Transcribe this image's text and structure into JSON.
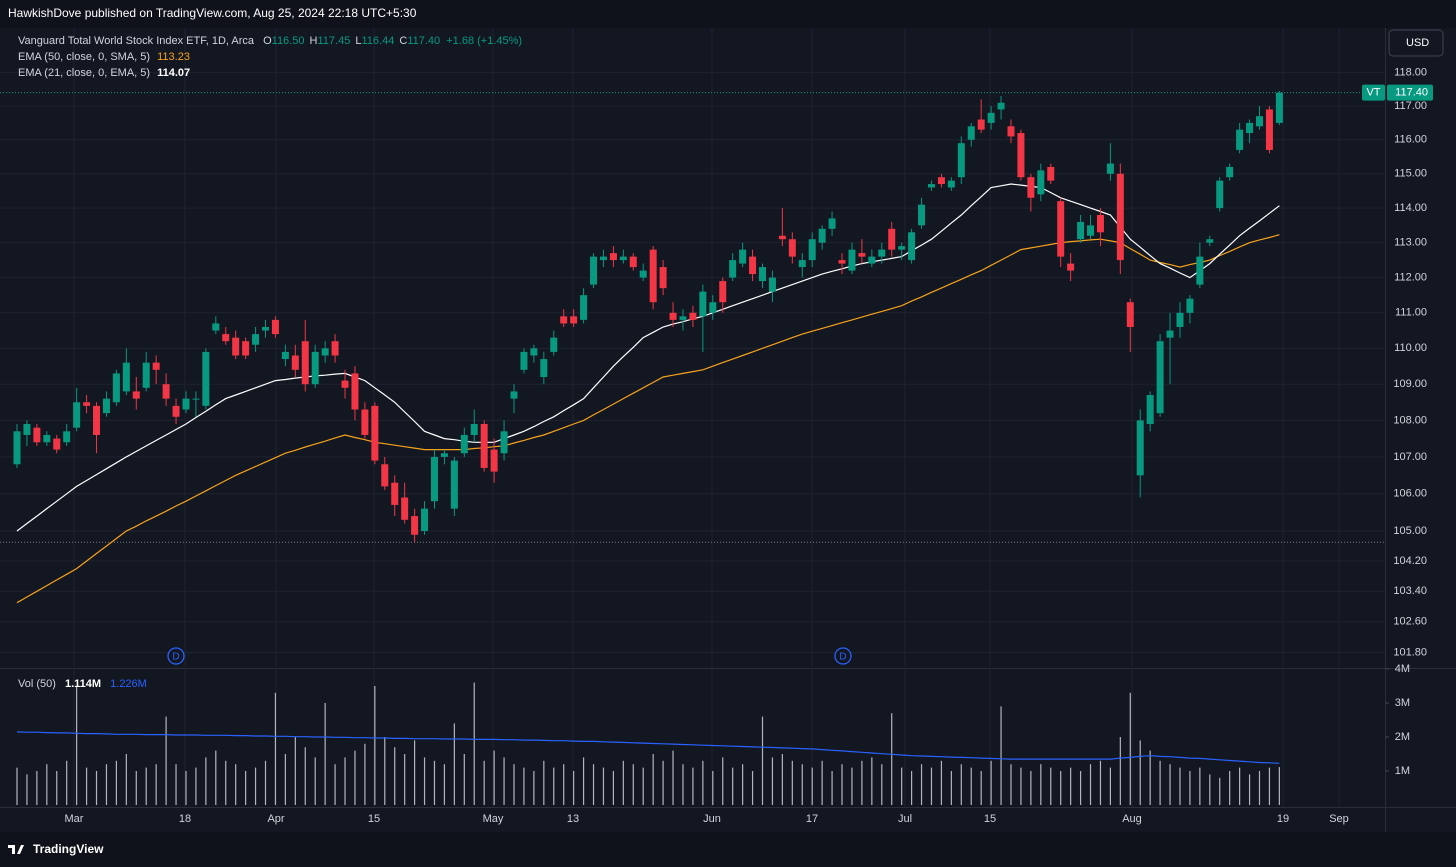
{
  "header": "HawkishDove published on TradingView.com, Aug 25, 2024 22:18 UTC+5:30",
  "footer": "TradingView",
  "currency_button": "USD",
  "legend": {
    "symbol_line": "Vanguard Total World Stock Index ETF, 1D, Arca",
    "ohlc": [
      {
        "key": "O",
        "value": "116.50"
      },
      {
        "key": "H",
        "value": "117.45"
      },
      {
        "key": "L",
        "value": "116.44"
      },
      {
        "key": "C",
        "value": "117.40"
      }
    ],
    "change": "+1.68 (+1.45%)"
  },
  "last_price": {
    "symbol": "VT",
    "label": "117.40"
  },
  "dividends": [
    "D",
    "D"
  ],
  "chart_data": {
    "type": "candlestick",
    "log_scale": true,
    "grid": true,
    "up_color": "#089981",
    "down_color": "#f23645",
    "ylim": [
      101.4,
      119.35
    ],
    "yticks": [
      {
        "value": 118,
        "label": "118.00"
      },
      {
        "value": 117,
        "label": "117.00"
      },
      {
        "value": 116,
        "label": "116.00"
      },
      {
        "value": 115,
        "label": "115.00"
      },
      {
        "value": 114,
        "label": "114.00"
      },
      {
        "value": 113,
        "label": "113.00"
      },
      {
        "value": 112,
        "label": "112.00"
      },
      {
        "value": 111,
        "label": "111.00"
      },
      {
        "value": 110,
        "label": "110.00"
      },
      {
        "value": 109,
        "label": "109.00"
      },
      {
        "value": 108,
        "label": "108.00"
      },
      {
        "value": 107,
        "label": "107.00"
      },
      {
        "value": 106,
        "label": "106.00"
      },
      {
        "value": 105,
        "label": "105.00"
      },
      {
        "value": 104.2,
        "label": "104.20"
      },
      {
        "value": 103.4,
        "label": "103.40"
      },
      {
        "value": 102.6,
        "label": "102.60"
      },
      {
        "value": 101.8,
        "label": "101.80"
      }
    ],
    "xtick_labels": [
      "Mar",
      "18",
      "Apr",
      "15",
      "May",
      "13",
      "Jun",
      "17",
      "Jul",
      "15",
      "Aug",
      "19",
      "Sep"
    ],
    "open": [
      106.8,
      107.6,
      107.8,
      107.4,
      107.5,
      107.4,
      107.8,
      108.5,
      108.4,
      108.2,
      108.5,
      108.8,
      108.8,
      108.9,
      109.6,
      109.0,
      108.4,
      108.3,
      108.6,
      108.4,
      110.5,
      110.4,
      110.3,
      110.2,
      110.1,
      110.5,
      110.8,
      109.7,
      109.8,
      110.2,
      109.0,
      109.8,
      110.2,
      109.1,
      109.3,
      108.3,
      108.4,
      106.8,
      106.3,
      105.9,
      105.4,
      105.0,
      105.8,
      107.0,
      105.6,
      107.1,
      107.6,
      107.9,
      107.2,
      107.1,
      108.6,
      109.4,
      109.8,
      109.2,
      109.9,
      110.9,
      110.9,
      110.8,
      111.8,
      112.5,
      112.7,
      112.5,
      112.6,
      112.0,
      112.8,
      112.3,
      111.0,
      110.8,
      111.0,
      110.9,
      111.0,
      111.9,
      112.0,
      112.4,
      112.6,
      111.9,
      111.6,
      113.2,
      113.1,
      112.3,
      112.5,
      113.0,
      113.4,
      112.5,
      112.2,
      112.7,
      112.4,
      112.6,
      113.4,
      112.8,
      112.5,
      113.5,
      114.6,
      114.9,
      114.6,
      114.9,
      116.0,
      116.6,
      116.5,
      116.9,
      116.4,
      116.2,
      114.9,
      114.4,
      115.2,
      114.2,
      112.4,
      113.1,
      113.2,
      113.8,
      115.0,
      115.0,
      111.3,
      106.5,
      107.9,
      108.2,
      110.3,
      110.6,
      111.0,
      111.8,
      113.0,
      114.0,
      114.9,
      115.7,
      116.2,
      116.4,
      116.9,
      116.5
    ],
    "high": [
      107.9,
      108.0,
      107.9,
      107.7,
      107.6,
      107.9,
      108.9,
      108.7,
      108.5,
      108.8,
      109.4,
      110.0,
      109.2,
      109.9,
      109.8,
      109.3,
      108.6,
      108.8,
      108.8,
      110.0,
      110.9,
      110.6,
      110.5,
      110.3,
      110.6,
      110.8,
      110.9,
      110.1,
      110.1,
      110.8,
      110.1,
      110.2,
      110.4,
      109.4,
      109.5,
      108.5,
      108.5,
      107.0,
      106.5,
      106.3,
      105.6,
      105.8,
      107.2,
      107.2,
      107.0,
      107.8,
      108.3,
      108.0,
      107.5,
      108.0,
      109.0,
      110.0,
      110.1,
      109.9,
      110.5,
      111.1,
      111.1,
      111.7,
      112.7,
      112.8,
      112.9,
      112.8,
      112.7,
      112.4,
      112.9,
      112.5,
      111.3,
      111.1,
      111.2,
      111.8,
      111.5,
      112.0,
      112.7,
      113.0,
      112.8,
      112.4,
      112.2,
      114.0,
      113.3,
      112.7,
      113.3,
      113.5,
      113.9,
      112.7,
      113.0,
      113.1,
      112.8,
      113.0,
      113.6,
      113.0,
      113.4,
      114.3,
      114.8,
      115.0,
      114.9,
      116.1,
      116.5,
      117.2,
      117.0,
      117.3,
      116.6,
      116.3,
      115.0,
      115.3,
      115.3,
      114.3,
      112.7,
      113.8,
      113.8,
      114.0,
      115.9,
      115.3,
      111.4,
      108.3,
      108.8,
      110.4,
      111.0,
      111.3,
      111.5,
      113.0,
      113.2,
      114.9,
      115.3,
      116.5,
      116.6,
      117.0,
      117.0,
      117.45
    ],
    "low": [
      106.7,
      107.3,
      107.3,
      107.3,
      107.1,
      107.3,
      107.7,
      108.2,
      107.1,
      108.1,
      108.4,
      108.7,
      108.3,
      108.8,
      109.0,
      108.4,
      107.9,
      108.2,
      108.1,
      108.3,
      110.4,
      110.1,
      109.7,
      109.7,
      109.9,
      110.3,
      110.3,
      109.5,
      109.2,
      108.8,
      108.9,
      109.6,
      109.6,
      108.6,
      108.0,
      107.5,
      106.8,
      106.1,
      105.4,
      105.2,
      104.7,
      104.9,
      105.6,
      106.8,
      105.4,
      107.0,
      107.4,
      106.6,
      106.3,
      106.9,
      108.2,
      109.3,
      109.6,
      109.0,
      109.8,
      110.6,
      110.6,
      110.7,
      111.7,
      112.3,
      112.3,
      112.4,
      112.2,
      111.9,
      111.1,
      111.5,
      110.6,
      110.5,
      110.6,
      109.9,
      110.8,
      111.0,
      111.9,
      112.3,
      111.9,
      111.7,
      111.3,
      112.9,
      112.4,
      112.0,
      112.3,
      112.8,
      113.2,
      112.1,
      112.1,
      112.4,
      112.3,
      112.4,
      112.6,
      112.5,
      112.4,
      113.4,
      114.5,
      114.6,
      114.5,
      114.7,
      115.8,
      116.2,
      116.3,
      116.6,
      115.9,
      114.8,
      113.9,
      114.2,
      114.7,
      112.3,
      111.9,
      113.0,
      113.1,
      112.9,
      114.8,
      112.1,
      109.9,
      105.9,
      107.7,
      108.1,
      109.0,
      110.3,
      110.7,
      111.7,
      112.9,
      113.9,
      114.8,
      115.6,
      115.9,
      116.3,
      115.6,
      116.44
    ],
    "close": [
      107.7,
      107.9,
      107.4,
      107.6,
      107.2,
      107.7,
      108.5,
      108.4,
      107.6,
      108.6,
      109.3,
      109.6,
      108.6,
      109.6,
      109.4,
      108.6,
      108.1,
      108.6,
      108.6,
      109.9,
      110.7,
      110.2,
      109.8,
      109.8,
      110.4,
      110.6,
      110.4,
      109.9,
      109.4,
      109.0,
      109.9,
      110.0,
      109.8,
      108.9,
      108.3,
      107.6,
      106.9,
      106.2,
      105.7,
      105.3,
      104.9,
      105.6,
      107.0,
      107.1,
      106.9,
      107.6,
      107.9,
      106.7,
      106.6,
      107.7,
      108.8,
      109.9,
      110.0,
      109.7,
      110.3,
      110.7,
      110.7,
      111.5,
      112.6,
      112.6,
      112.5,
      112.6,
      112.3,
      112.2,
      111.3,
      111.7,
      110.8,
      110.9,
      110.8,
      111.6,
      111.3,
      111.3,
      112.5,
      112.8,
      112.1,
      112.3,
      112.0,
      113.1,
      112.6,
      112.5,
      113.1,
      113.4,
      113.7,
      112.4,
      112.8,
      112.6,
      112.6,
      112.8,
      112.8,
      112.9,
      113.3,
      114.1,
      114.7,
      114.7,
      114.8,
      115.9,
      116.4,
      116.3,
      116.8,
      117.1,
      116.1,
      114.9,
      114.3,
      115.1,
      114.8,
      112.6,
      112.2,
      113.6,
      113.5,
      113.3,
      115.3,
      112.5,
      110.6,
      108.0,
      108.7,
      110.2,
      110.5,
      111.0,
      111.4,
      112.6,
      113.1,
      114.8,
      115.2,
      116.3,
      116.5,
      116.7,
      115.7,
      117.4
    ],
    "series": [
      {
        "name": "EMA (50, close, 0, SMA, 5)",
        "color": "#f7a21b",
        "value_label": "113.23",
        "values": [
          103.1,
          103.25,
          103.4,
          103.55,
          103.7,
          103.85,
          104.0,
          104.2,
          104.4,
          104.6,
          104.8,
          105.0,
          105.13,
          105.27,
          105.4,
          105.53,
          105.67,
          105.8,
          105.94,
          106.08,
          106.22,
          106.36,
          106.5,
          106.62,
          106.74,
          106.86,
          106.98,
          107.1,
          107.18,
          107.27,
          107.35,
          107.43,
          107.52,
          107.6,
          107.53,
          107.47,
          107.4,
          107.36,
          107.32,
          107.28,
          107.24,
          107.2,
          107.2,
          107.2,
          107.2,
          107.2,
          107.23,
          107.25,
          107.28,
          107.3,
          107.38,
          107.45,
          107.53,
          107.6,
          107.7,
          107.8,
          107.9,
          108.0,
          108.15,
          108.3,
          108.45,
          108.6,
          108.75,
          108.9,
          109.05,
          109.2,
          109.25,
          109.3,
          109.35,
          109.4,
          109.5,
          109.6,
          109.7,
          109.8,
          109.9,
          110.0,
          110.1,
          110.2,
          110.3,
          110.4,
          110.48,
          110.56,
          110.64,
          110.72,
          110.8,
          110.88,
          110.96,
          111.04,
          111.12,
          111.2,
          111.33,
          111.45,
          111.58,
          111.7,
          111.83,
          111.95,
          112.08,
          112.2,
          112.35,
          112.5,
          112.65,
          112.8,
          112.85,
          112.9,
          112.95,
          113.0,
          113.03,
          113.05,
          113.08,
          113.1,
          113.05,
          113.0,
          112.83,
          112.67,
          112.5,
          112.43,
          112.37,
          112.3,
          112.37,
          112.43,
          112.5,
          112.63,
          112.75,
          112.88,
          113.0,
          113.08,
          113.15,
          113.23
        ]
      },
      {
        "name": "EMA (21, close, 0, EMA, 5)",
        "color": "#ffffff",
        "value_label": "114.07",
        "values": [
          105.0,
          105.2,
          105.4,
          105.6,
          105.8,
          106.0,
          106.2,
          106.36,
          106.52,
          106.68,
          106.84,
          107.0,
          107.15,
          107.3,
          107.45,
          107.6,
          107.75,
          107.9,
          108.08,
          108.25,
          108.43,
          108.6,
          108.7,
          108.8,
          108.9,
          109.0,
          109.1,
          109.13,
          109.17,
          109.2,
          109.23,
          109.25,
          109.28,
          109.3,
          109.2,
          109.1,
          108.9,
          108.7,
          108.5,
          108.23,
          107.97,
          107.7,
          107.6,
          107.5,
          107.47,
          107.43,
          107.4,
          107.4,
          107.4,
          107.5,
          107.6,
          107.7,
          107.83,
          107.97,
          108.1,
          108.27,
          108.43,
          108.6,
          108.9,
          109.2,
          109.5,
          109.77,
          110.03,
          110.3,
          110.45,
          110.6,
          110.68,
          110.75,
          110.83,
          110.9,
          111.0,
          111.1,
          111.2,
          111.3,
          111.4,
          111.5,
          111.6,
          111.7,
          111.8,
          111.9,
          112.0,
          112.1,
          112.18,
          112.25,
          112.33,
          112.4,
          112.45,
          112.5,
          112.55,
          112.6,
          112.77,
          112.93,
          113.1,
          113.33,
          113.57,
          113.8,
          114.07,
          114.33,
          114.6,
          114.65,
          114.7,
          114.67,
          114.63,
          114.6,
          114.45,
          114.3,
          114.2,
          114.1,
          114.0,
          113.9,
          113.8,
          113.45,
          113.1,
          112.87,
          112.63,
          112.4,
          112.27,
          112.13,
          112.0,
          112.2,
          112.4,
          112.67,
          112.93,
          113.2,
          113.42,
          113.63,
          113.85,
          114.07
        ]
      }
    ],
    "volume": {
      "name": "Vol (50)",
      "color": "#b2b5be",
      "value_label": "1.114M",
      "ylim": [
        0,
        4
      ],
      "yticks": [
        {
          "value": 1,
          "label": "1M"
        },
        {
          "value": 2,
          "label": "2M"
        },
        {
          "value": 3,
          "label": "3M"
        },
        {
          "value": 4,
          "label": "4M"
        }
      ],
      "values": [
        1.1,
        0.9,
        1.0,
        1.2,
        1.0,
        1.3,
        3.5,
        1.1,
        1.0,
        1.2,
        1.3,
        1.5,
        1.0,
        1.1,
        1.2,
        2.6,
        1.2,
        1.0,
        1.1,
        1.4,
        1.6,
        1.3,
        1.2,
        1.0,
        1.1,
        1.3,
        3.3,
        1.5,
        2.0,
        1.7,
        1.4,
        3.0,
        1.2,
        1.4,
        1.6,
        1.8,
        3.5,
        2.0,
        1.7,
        1.5,
        1.9,
        1.4,
        1.3,
        1.2,
        2.4,
        1.5,
        3.6,
        1.3,
        1.6,
        1.4,
        1.2,
        1.1,
        1.0,
        1.3,
        1.1,
        1.2,
        1.0,
        1.4,
        1.2,
        1.1,
        1.0,
        1.3,
        1.2,
        1.1,
        1.5,
        1.3,
        1.6,
        1.2,
        1.1,
        1.3,
        1.0,
        1.4,
        1.1,
        1.2,
        1.0,
        2.6,
        1.4,
        1.5,
        1.3,
        1.2,
        1.1,
        1.3,
        1.0,
        1.2,
        1.1,
        1.3,
        1.4,
        1.2,
        2.7,
        1.1,
        1.0,
        1.2,
        1.1,
        1.3,
        1.0,
        1.2,
        1.1,
        1.0,
        1.3,
        2.9,
        1.2,
        1.1,
        1.0,
        1.2,
        1.1,
        1.0,
        1.1,
        1.0,
        1.2,
        1.3,
        1.1,
        2.0,
        3.3,
        1.9,
        1.6,
        1.3,
        1.2,
        1.1,
        1.0,
        1.1,
        0.9,
        0.8,
        1.0,
        1.1,
        0.9,
        1.0,
        1.1,
        1.114
      ],
      "ma": {
        "color": "#2962ff",
        "value_label": "1.226M",
        "values": [
          2.15,
          2.14,
          2.14,
          2.13,
          2.12,
          2.12,
          2.11,
          2.1,
          2.1,
          2.09,
          2.08,
          2.08,
          2.08,
          2.07,
          2.07,
          2.07,
          2.06,
          2.06,
          2.06,
          2.05,
          2.05,
          2.05,
          2.04,
          2.04,
          2.03,
          2.03,
          2.02,
          2.02,
          2.01,
          2.01,
          2.0,
          2.0,
          1.99,
          1.99,
          1.98,
          1.98,
          1.97,
          1.97,
          1.96,
          1.96,
          1.95,
          1.95,
          1.95,
          1.94,
          1.94,
          1.94,
          1.93,
          1.93,
          1.93,
          1.92,
          1.92,
          1.91,
          1.91,
          1.9,
          1.89,
          1.89,
          1.88,
          1.87,
          1.87,
          1.86,
          1.85,
          1.84,
          1.83,
          1.82,
          1.81,
          1.8,
          1.79,
          1.78,
          1.77,
          1.76,
          1.75,
          1.74,
          1.73,
          1.72,
          1.71,
          1.7,
          1.69,
          1.68,
          1.67,
          1.66,
          1.65,
          1.63,
          1.61,
          1.59,
          1.57,
          1.55,
          1.53,
          1.51,
          1.49,
          1.47,
          1.45,
          1.44,
          1.43,
          1.42,
          1.41,
          1.4,
          1.39,
          1.38,
          1.37,
          1.36,
          1.35,
          1.35,
          1.35,
          1.35,
          1.35,
          1.35,
          1.35,
          1.35,
          1.35,
          1.35,
          1.35,
          1.38,
          1.4,
          1.43,
          1.45,
          1.43,
          1.42,
          1.4,
          1.38,
          1.37,
          1.35,
          1.33,
          1.31,
          1.29,
          1.27,
          1.25,
          1.24,
          1.226
        ]
      }
    }
  }
}
